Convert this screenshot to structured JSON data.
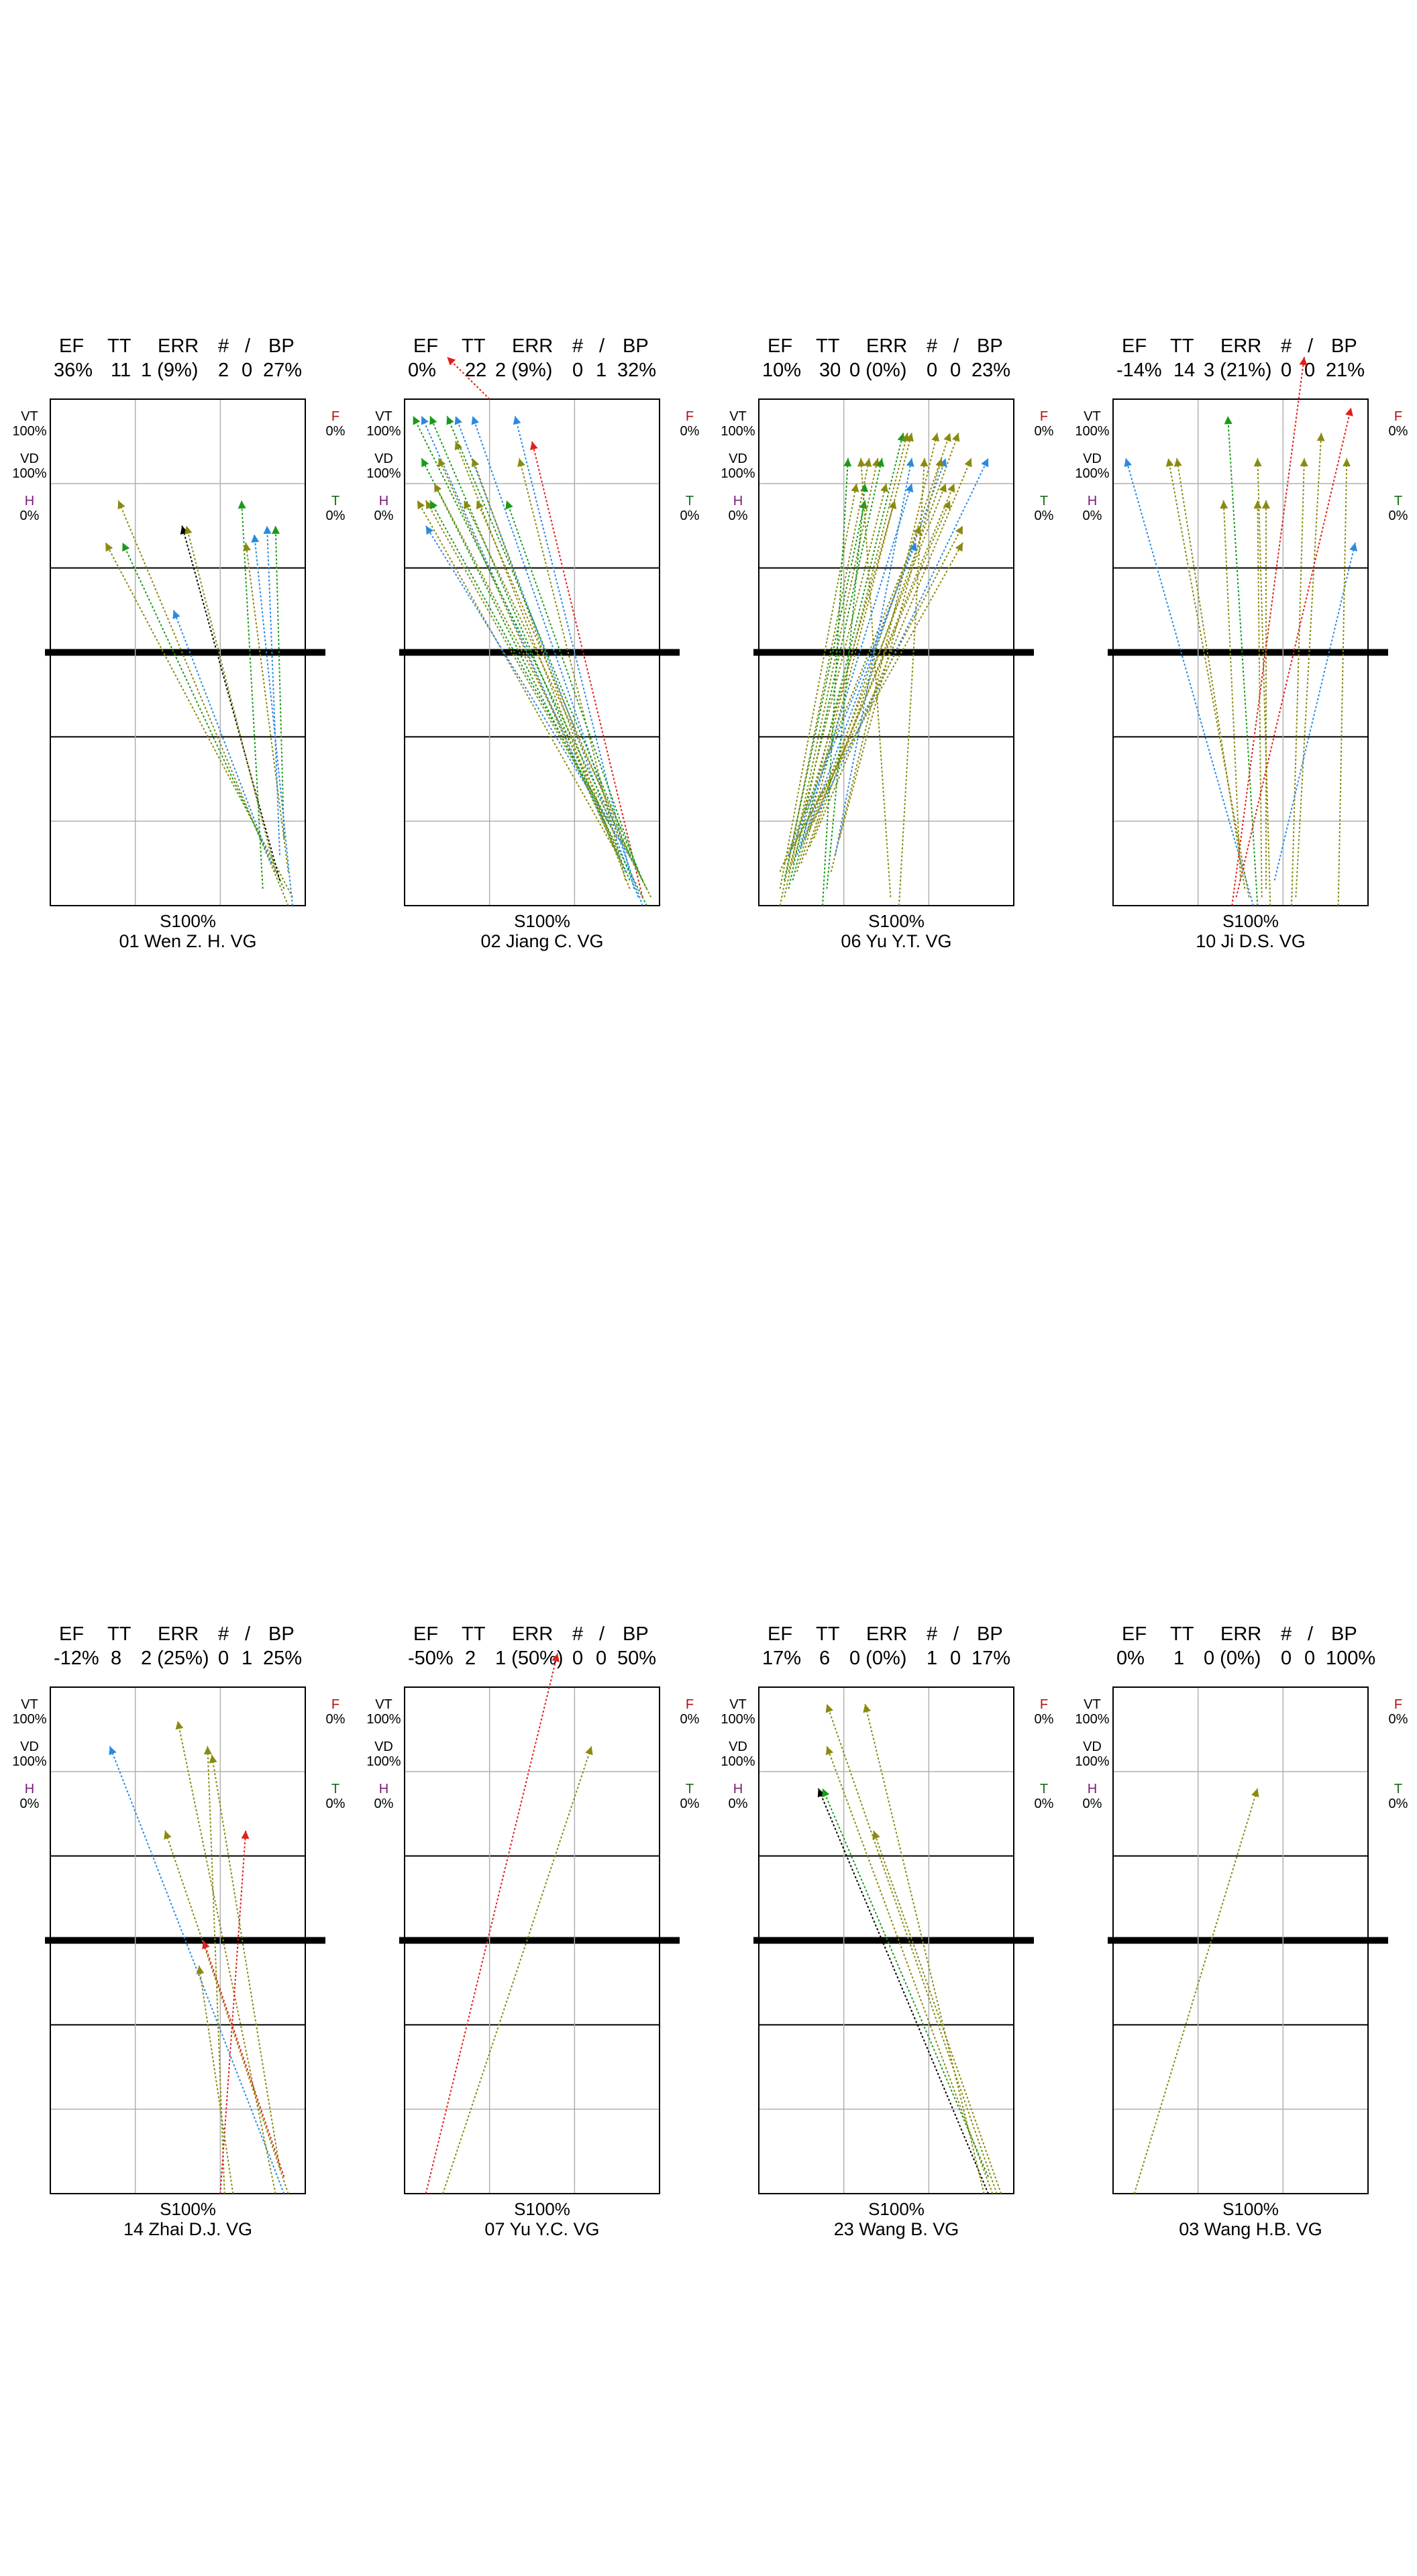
{
  "header_labels": [
    "EF",
    "TT",
    "ERR",
    "#",
    "/",
    "BP"
  ],
  "side_labels": {
    "vt": {
      "label": "VT",
      "value": "100%",
      "color": "#000000"
    },
    "vd": {
      "label": "VD",
      "value": "100%",
      "color": "#000000"
    },
    "h": {
      "label": "H",
      "value": "0%",
      "color": "#7a1a7a"
    },
    "f": {
      "label": "F",
      "value": "0%",
      "color": "#b01010"
    },
    "t": {
      "label": "T",
      "value": "0%",
      "color": "#1a6a1a"
    }
  },
  "colors": {
    "red": "#e0201a",
    "green": "#1a9a1a",
    "olive": "#8a8a10",
    "blue": "#2a8ae0",
    "black": "#000000",
    "grid_minor": "#b0b0b0",
    "grid_major": "#000000"
  },
  "chart_data": [
    {
      "type": "scatter",
      "header": {
        "ef": "36%",
        "tt": "11",
        "err": "1 (9%)",
        "n1": "2",
        "n2": "0",
        "bp": "27%"
      },
      "pct_label": "S100%",
      "name": "01 Wen Z. H.  VG",
      "xlim": [
        0,
        6
      ],
      "ylim": [
        0,
        6
      ],
      "arrows": [
        {
          "x0": 5.6,
          "y0": 0.0,
          "x1": 1.6,
          "y1": 4.8,
          "color": "olive"
        },
        {
          "x0": 5.7,
          "y0": 0.1,
          "x1": 1.3,
          "y1": 4.3,
          "color": "olive"
        },
        {
          "x0": 5.5,
          "y0": 0.2,
          "x1": 1.7,
          "y1": 4.3,
          "color": "green"
        },
        {
          "x0": 5.4,
          "y0": 0.3,
          "x1": 3.1,
          "y1": 4.5,
          "color": "black"
        },
        {
          "x0": 5.3,
          "y0": 0.4,
          "x1": 3.2,
          "y1": 4.5,
          "color": "olive"
        },
        {
          "x0": 5.2,
          "y0": 0.5,
          "x1": 2.9,
          "y1": 3.5,
          "color": "blue"
        },
        {
          "x0": 5.0,
          "y0": 0.2,
          "x1": 4.5,
          "y1": 4.8,
          "color": "green"
        },
        {
          "x0": 5.6,
          "y0": 0.4,
          "x1": 4.6,
          "y1": 4.3,
          "color": "olive"
        },
        {
          "x0": 5.4,
          "y0": 0.6,
          "x1": 5.1,
          "y1": 4.5,
          "color": "blue"
        },
        {
          "x0": 5.5,
          "y0": 0.8,
          "x1": 5.3,
          "y1": 4.5,
          "color": "green"
        },
        {
          "x0": 5.7,
          "y0": 0.0,
          "x1": 4.8,
          "y1": 4.4,
          "color": "blue"
        }
      ]
    },
    {
      "type": "scatter",
      "header": {
        "ef": "0%",
        "tt": "22",
        "err": "2 (9%)",
        "n1": "0",
        "n2": "1",
        "bp": "32%"
      },
      "pct_label": "S100%",
      "name": "02 Jiang C.  VG",
      "xlim": [
        0,
        6
      ],
      "ylim": [
        0,
        6
      ],
      "arrows": [
        {
          "x0": 5.2,
          "y0": 0.4,
          "x1": 0.4,
          "y1": 5.8,
          "color": "blue"
        },
        {
          "x0": 5.3,
          "y0": 0.3,
          "x1": 0.6,
          "y1": 5.8,
          "color": "green"
        },
        {
          "x0": 5.5,
          "y0": 0.1,
          "x1": 1.2,
          "y1": 5.8,
          "color": "blue"
        },
        {
          "x0": 5.6,
          "y0": 0.0,
          "x1": 1.6,
          "y1": 5.8,
          "color": "blue"
        },
        {
          "x0": 5.4,
          "y0": 0.2,
          "x1": 2.6,
          "y1": 5.8,
          "color": "blue"
        },
        {
          "x0": 5.7,
          "y0": 0.0,
          "x1": 0.4,
          "y1": 5.3,
          "color": "green"
        },
        {
          "x0": 5.1,
          "y0": 0.5,
          "x1": 0.8,
          "y1": 5.3,
          "color": "olive"
        },
        {
          "x0": 5.0,
          "y0": 0.6,
          "x1": 1.6,
          "y1": 5.3,
          "color": "olive"
        },
        {
          "x0": 5.2,
          "y0": 0.3,
          "x1": 2.7,
          "y1": 5.3,
          "color": "olive"
        },
        {
          "x0": 5.3,
          "y0": 0.2,
          "x1": 1.2,
          "y1": 5.5,
          "color": "olive"
        },
        {
          "x0": 5.6,
          "y0": 0.1,
          "x1": 3.0,
          "y1": 5.5,
          "color": "red"
        },
        {
          "x0": 4.9,
          "y0": 0.7,
          "x1": 0.3,
          "y1": 4.8,
          "color": "olive"
        },
        {
          "x0": 5.0,
          "y0": 0.8,
          "x1": 0.5,
          "y1": 4.8,
          "color": "olive"
        },
        {
          "x0": 5.1,
          "y0": 0.9,
          "x1": 1.4,
          "y1": 4.8,
          "color": "olive"
        },
        {
          "x0": 5.3,
          "y0": 0.6,
          "x1": 1.7,
          "y1": 4.8,
          "color": "olive"
        },
        {
          "x0": 5.4,
          "y0": 0.5,
          "x1": 0.5,
          "y1": 4.5,
          "color": "blue"
        },
        {
          "x0": 4.8,
          "y0": 1.0,
          "x1": 0.6,
          "y1": 4.8,
          "color": "green"
        },
        {
          "x0": 5.5,
          "y0": 0.4,
          "x1": 2.4,
          "y1": 4.8,
          "color": "green"
        },
        {
          "x0": 5.6,
          "y0": 0.3,
          "x1": 1.0,
          "y1": 5.8,
          "color": "green"
        },
        {
          "x0": 5.7,
          "y0": 0.2,
          "x1": 0.2,
          "y1": 5.8,
          "color": "green"
        },
        {
          "x0": 2.0,
          "y0": 6.0,
          "x1": 1.0,
          "y1": 6.5,
          "color": "red"
        },
        {
          "x0": 5.8,
          "y0": 0.1,
          "x1": 0.7,
          "y1": 5.0,
          "color": "olive"
        }
      ]
    },
    {
      "type": "scatter",
      "header": {
        "ef": "10%",
        "tt": "30",
        "err": "0 (0%)",
        "n1": "0",
        "n2": "0",
        "bp": "23%"
      },
      "pct_label": "S100%",
      "name": "06 Yu Y.T.  VG",
      "xlim": [
        0,
        6
      ],
      "ylim": [
        0,
        6
      ],
      "arrows": [
        {
          "x0": 0.5,
          "y0": 0.0,
          "x1": 2.6,
          "y1": 5.3,
          "color": "olive"
        },
        {
          "x0": 0.6,
          "y0": 0.1,
          "x1": 2.8,
          "y1": 5.3,
          "color": "olive"
        },
        {
          "x0": 0.7,
          "y0": 0.2,
          "x1": 2.9,
          "y1": 5.3,
          "color": "green"
        },
        {
          "x0": 0.8,
          "y0": 0.3,
          "x1": 3.4,
          "y1": 5.6,
          "color": "green"
        },
        {
          "x0": 0.9,
          "y0": 0.4,
          "x1": 3.5,
          "y1": 5.6,
          "color": "olive"
        },
        {
          "x0": 1.0,
          "y0": 0.5,
          "x1": 3.6,
          "y1": 5.6,
          "color": "olive"
        },
        {
          "x0": 1.1,
          "y0": 0.6,
          "x1": 4.5,
          "y1": 5.6,
          "color": "olive"
        },
        {
          "x0": 1.2,
          "y0": 0.7,
          "x1": 4.7,
          "y1": 5.6,
          "color": "olive"
        },
        {
          "x0": 1.3,
          "y0": 0.8,
          "x1": 5.0,
          "y1": 5.3,
          "color": "olive"
        },
        {
          "x0": 0.5,
          "y0": 0.2,
          "x1": 2.3,
          "y1": 5.0,
          "color": "olive"
        },
        {
          "x0": 0.6,
          "y0": 0.3,
          "x1": 2.5,
          "y1": 4.8,
          "color": "green"
        },
        {
          "x0": 0.7,
          "y0": 0.4,
          "x1": 3.0,
          "y1": 5.0,
          "color": "olive"
        },
        {
          "x0": 0.8,
          "y0": 0.5,
          "x1": 3.2,
          "y1": 4.8,
          "color": "olive"
        },
        {
          "x0": 0.9,
          "y0": 0.6,
          "x1": 3.6,
          "y1": 5.0,
          "color": "blue"
        },
        {
          "x0": 1.0,
          "y0": 0.7,
          "x1": 4.4,
          "y1": 5.3,
          "color": "blue"
        },
        {
          "x0": 1.1,
          "y0": 0.8,
          "x1": 4.4,
          "y1": 5.0,
          "color": "olive"
        },
        {
          "x0": 1.2,
          "y0": 0.9,
          "x1": 4.5,
          "y1": 4.8,
          "color": "olive"
        },
        {
          "x0": 1.3,
          "y0": 1.0,
          "x1": 4.6,
          "y1": 5.0,
          "color": "olive"
        },
        {
          "x0": 1.4,
          "y0": 1.1,
          "x1": 5.4,
          "y1": 5.3,
          "color": "blue"
        },
        {
          "x0": 0.5,
          "y0": 0.4,
          "x1": 3.8,
          "y1": 4.5,
          "color": "olive"
        },
        {
          "x0": 0.6,
          "y0": 0.5,
          "x1": 4.8,
          "y1": 4.5,
          "color": "olive"
        },
        {
          "x0": 0.7,
          "y0": 0.6,
          "x1": 3.7,
          "y1": 4.3,
          "color": "blue"
        },
        {
          "x0": 0.8,
          "y0": 0.7,
          "x1": 4.8,
          "y1": 4.3,
          "color": "olive"
        },
        {
          "x0": 1.5,
          "y0": 0.0,
          "x1": 2.1,
          "y1": 5.3,
          "color": "green"
        },
        {
          "x0": 1.6,
          "y0": 0.2,
          "x1": 2.5,
          "y1": 5.0,
          "color": "green"
        },
        {
          "x0": 3.1,
          "y0": 0.1,
          "x1": 2.4,
          "y1": 5.3,
          "color": "olive"
        },
        {
          "x0": 3.3,
          "y0": 0.0,
          "x1": 3.9,
          "y1": 5.3,
          "color": "olive"
        },
        {
          "x0": 1.7,
          "y0": 0.4,
          "x1": 4.2,
          "y1": 5.6,
          "color": "olive"
        },
        {
          "x0": 1.8,
          "y0": 0.6,
          "x1": 3.6,
          "y1": 5.3,
          "color": "blue"
        },
        {
          "x0": 1.9,
          "y0": 0.8,
          "x1": 4.3,
          "y1": 5.3,
          "color": "olive"
        }
      ]
    },
    {
      "type": "scatter",
      "header": {
        "ef": "-14%",
        "tt": "14",
        "err": "3 (21%)",
        "n1": "0",
        "n2": "0",
        "bp": "21%"
      },
      "pct_label": "S100%",
      "name": "10 Ji D.S.  VG",
      "xlim": [
        0,
        6
      ],
      "ylim": [
        0,
        6
      ],
      "arrows": [
        {
          "x0": 3.3,
          "y0": 0.0,
          "x1": 0.3,
          "y1": 5.3,
          "color": "blue"
        },
        {
          "x0": 3.2,
          "y0": 0.1,
          "x1": 1.3,
          "y1": 5.3,
          "color": "olive"
        },
        {
          "x0": 3.1,
          "y0": 0.2,
          "x1": 1.5,
          "y1": 5.3,
          "color": "olive"
        },
        {
          "x0": 3.4,
          "y0": 0.0,
          "x1": 2.7,
          "y1": 5.8,
          "color": "green"
        },
        {
          "x0": 3.0,
          "y0": 0.3,
          "x1": 2.6,
          "y1": 4.8,
          "color": "olive"
        },
        {
          "x0": 3.5,
          "y0": 0.1,
          "x1": 3.4,
          "y1": 4.8,
          "color": "olive"
        },
        {
          "x0": 3.6,
          "y0": 0.2,
          "x1": 3.6,
          "y1": 4.8,
          "color": "olive"
        },
        {
          "x0": 3.7,
          "y0": 0.0,
          "x1": 3.4,
          "y1": 5.3,
          "color": "olive"
        },
        {
          "x0": 4.2,
          "y0": 0.0,
          "x1": 4.5,
          "y1": 5.3,
          "color": "olive"
        },
        {
          "x0": 4.3,
          "y0": 0.1,
          "x1": 4.9,
          "y1": 5.6,
          "color": "olive"
        },
        {
          "x0": 2.8,
          "y0": 0.0,
          "x1": 4.5,
          "y1": 6.5,
          "color": "red"
        },
        {
          "x0": 2.9,
          "y0": 0.1,
          "x1": 5.6,
          "y1": 5.9,
          "color": "red"
        },
        {
          "x0": 3.8,
          "y0": 0.3,
          "x1": 5.7,
          "y1": 4.3,
          "color": "blue"
        },
        {
          "x0": 5.3,
          "y0": 0.0,
          "x1": 5.5,
          "y1": 5.3,
          "color": "olive"
        }
      ]
    },
    {
      "type": "scatter",
      "header": {
        "ef": "-12%",
        "tt": "8",
        "err": "2 (25%)",
        "n1": "0",
        "n2": "1",
        "bp": "25%"
      },
      "pct_label": "S100%",
      "name": "14 Zhai D.J.  VG",
      "xlim": [
        0,
        6
      ],
      "ylim": [
        0,
        6
      ],
      "arrows": [
        {
          "x0": 5.5,
          "y0": 0.0,
          "x1": 1.4,
          "y1": 5.3,
          "color": "blue"
        },
        {
          "x0": 5.3,
          "y0": 0.0,
          "x1": 3.0,
          "y1": 5.6,
          "color": "olive"
        },
        {
          "x0": 4.1,
          "y0": 0.0,
          "x1": 3.7,
          "y1": 5.3,
          "color": "olive"
        },
        {
          "x0": 5.6,
          "y0": 0.0,
          "x1": 2.7,
          "y1": 4.3,
          "color": "olive"
        },
        {
          "x0": 4.0,
          "y0": 0.0,
          "x1": 4.6,
          "y1": 4.3,
          "color": "red"
        },
        {
          "x0": 5.4,
          "y0": 0.3,
          "x1": 3.8,
          "y1": 5.2,
          "color": "olive"
        },
        {
          "x0": 4.3,
          "y0": 0.0,
          "x1": 3.5,
          "y1": 2.7,
          "color": "olive"
        },
        {
          "x0": 5.5,
          "y0": 0.2,
          "x1": 3.6,
          "y1": 3.0,
          "color": "red"
        }
      ]
    },
    {
      "type": "scatter",
      "header": {
        "ef": "-50%",
        "tt": "2",
        "err": "1 (50%)",
        "n1": "0",
        "n2": "0",
        "bp": "50%"
      },
      "pct_label": "S100%",
      "name": "07 Yu Y.C.  VG",
      "xlim": [
        0,
        6
      ],
      "ylim": [
        0,
        6
      ],
      "arrows": [
        {
          "x0": 0.5,
          "y0": 0.0,
          "x1": 3.6,
          "y1": 6.4,
          "color": "red"
        },
        {
          "x0": 0.9,
          "y0": 0.0,
          "x1": 4.4,
          "y1": 5.3,
          "color": "olive"
        }
      ]
    },
    {
      "type": "scatter",
      "header": {
        "ef": "17%",
        "tt": "6",
        "err": "0 (0%)",
        "n1": "1",
        "n2": "0",
        "bp": "17%"
      },
      "pct_label": "S100%",
      "name": "23 Wang B.  VG",
      "xlim": [
        0,
        6
      ],
      "ylim": [
        0,
        6
      ],
      "arrows": [
        {
          "x0": 5.4,
          "y0": 0.0,
          "x1": 1.4,
          "y1": 4.8,
          "color": "black"
        },
        {
          "x0": 5.6,
          "y0": 0.0,
          "x1": 1.6,
          "y1": 5.8,
          "color": "olive"
        },
        {
          "x0": 5.5,
          "y0": 0.0,
          "x1": 1.6,
          "y1": 5.3,
          "color": "olive"
        },
        {
          "x0": 5.3,
          "y0": 0.0,
          "x1": 2.5,
          "y1": 5.8,
          "color": "olive"
        },
        {
          "x0": 5.7,
          "y0": 0.0,
          "x1": 2.7,
          "y1": 4.3,
          "color": "olive"
        },
        {
          "x0": 5.4,
          "y0": 0.2,
          "x1": 1.5,
          "y1": 4.8,
          "color": "green"
        }
      ]
    },
    {
      "type": "scatter",
      "header": {
        "ef": "0%",
        "tt": "1",
        "err": "0 (0%)",
        "n1": "0",
        "n2": "0",
        "bp": "100%"
      },
      "pct_label": "S100%",
      "name": "03 Wang H.B.  VG",
      "xlim": [
        0,
        6
      ],
      "ylim": [
        0,
        6
      ],
      "arrows": [
        {
          "x0": 0.5,
          "y0": 0.0,
          "x1": 3.4,
          "y1": 4.8,
          "color": "olive"
        }
      ]
    }
  ]
}
